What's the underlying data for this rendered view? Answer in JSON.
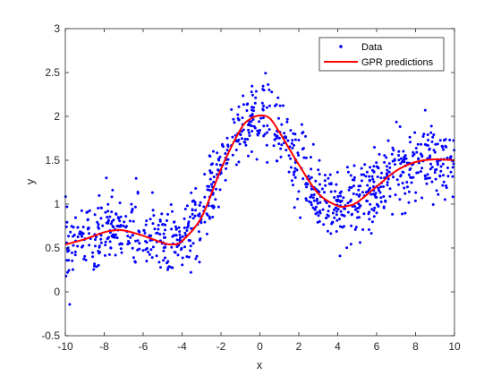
{
  "colors": {
    "data_marker": "#0000ff",
    "prediction_line": "#ff0000",
    "axis": "#262626",
    "background": "#ffffff"
  },
  "chart_data": {
    "type": "scatter",
    "title": "",
    "xlabel": "x",
    "ylabel": "y",
    "xlim": [
      -10,
      10
    ],
    "ylim": [
      -0.5,
      3
    ],
    "xticks": [
      -10,
      -8,
      -6,
      -4,
      -2,
      0,
      2,
      4,
      6,
      8,
      10
    ],
    "xtick_labels": [
      "-10",
      "-8",
      "-6",
      "-4",
      "-2",
      "0",
      "2",
      "4",
      "6",
      "8",
      "10"
    ],
    "yticks": [
      -0.5,
      0,
      0.5,
      1,
      1.5,
      2,
      2.5,
      3
    ],
    "ytick_labels": [
      "-0.5",
      "0",
      "0.5",
      "1",
      "1.5",
      "2",
      "2.5",
      "3"
    ],
    "grid": false,
    "legend_position": "top-right",
    "series": [
      {
        "name": "Data",
        "kind": "scatter",
        "n_points": 1000,
        "noise_sd": 0.2,
        "x_range": [
          -10,
          10
        ],
        "note": "noisy samples scattered around the prediction curve"
      },
      {
        "name": "GPR predictions",
        "kind": "line",
        "x": [
          -10,
          -9,
          -8,
          -7.5,
          -7,
          -6,
          -5,
          -4.5,
          -4,
          -3,
          -2,
          -1,
          -0.5,
          0,
          0.5,
          1,
          2,
          3,
          4,
          4.5,
          5,
          6,
          7,
          8,
          9,
          10
        ],
        "y": [
          0.54,
          0.6,
          0.68,
          0.7,
          0.7,
          0.64,
          0.56,
          0.54,
          0.58,
          0.85,
          1.4,
          1.85,
          1.97,
          2.01,
          1.98,
          1.82,
          1.45,
          1.12,
          0.98,
          0.98,
          1.02,
          1.2,
          1.38,
          1.48,
          1.51,
          1.5
        ]
      }
    ]
  }
}
